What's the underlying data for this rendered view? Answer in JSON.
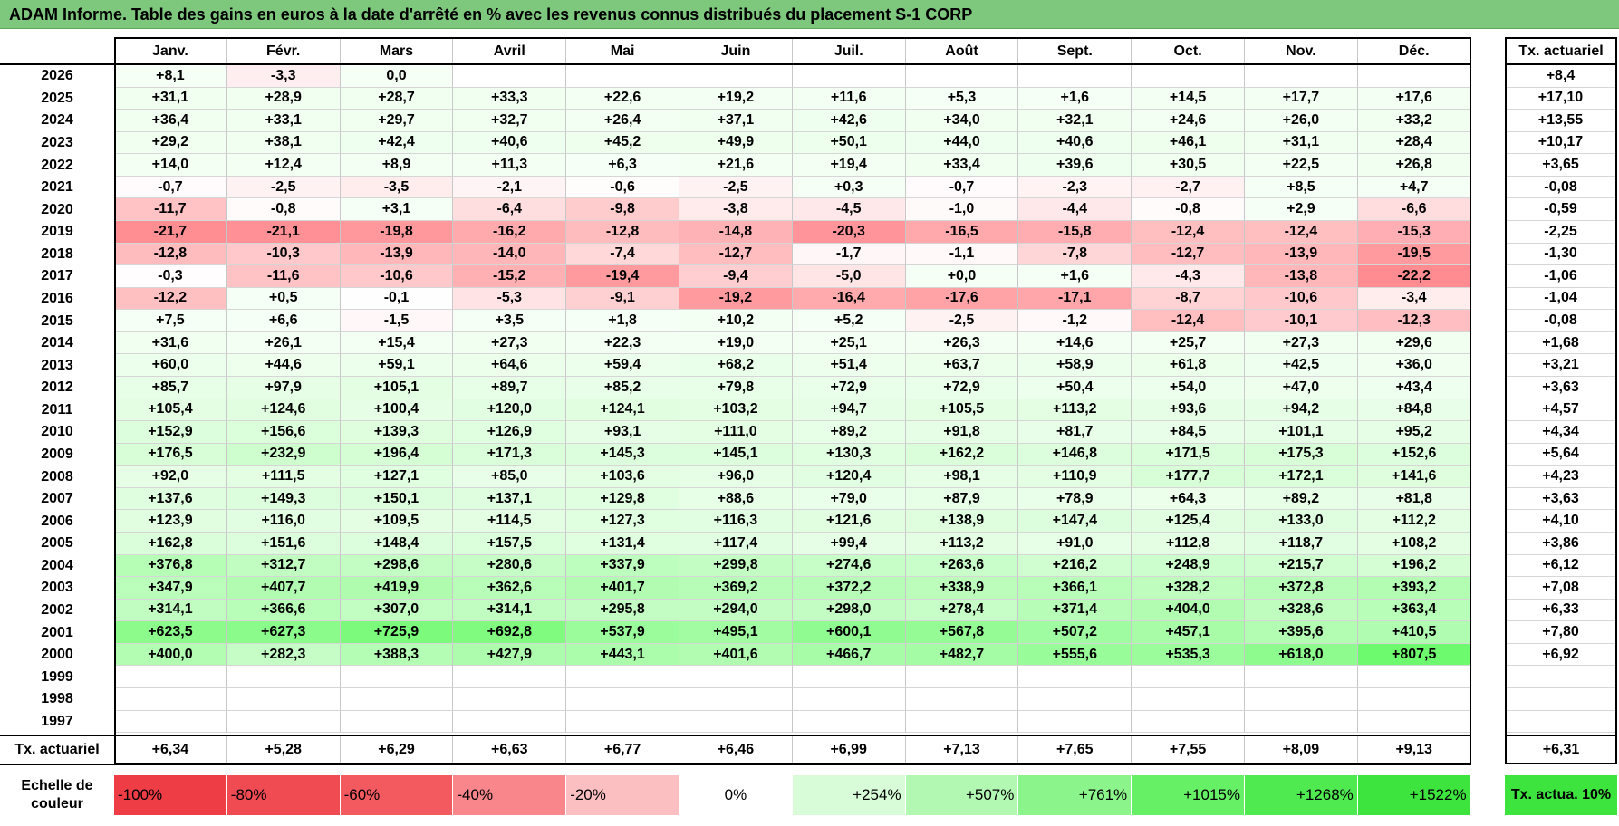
{
  "title": "ADAM Informe. Table des gains en euros à la date d'arrêté en % avec les revenus connus distribués du placement S-1 CORP",
  "months": [
    "Janv.",
    "Févr.",
    "Mars",
    "Avril",
    "Mai",
    "Juin",
    "Juil.",
    "Août",
    "Sept.",
    "Oct.",
    "Nov.",
    "Déc."
  ],
  "rate_header": "Tx. actuariel",
  "rows": [
    {
      "year": "2026",
      "values": [
        "+8,1",
        "-3,3",
        "0,0",
        "",
        "",
        "",
        "",
        "",
        "",
        "",
        "",
        ""
      ],
      "rate": "+8,4"
    },
    {
      "year": "2025",
      "values": [
        "+31,1",
        "+28,9",
        "+28,7",
        "+33,3",
        "+22,6",
        "+19,2",
        "+11,6",
        "+5,3",
        "+1,6",
        "+14,5",
        "+17,7",
        "+17,6"
      ],
      "rate": "+17,10"
    },
    {
      "year": "2024",
      "values": [
        "+36,4",
        "+33,1",
        "+29,7",
        "+32,7",
        "+26,4",
        "+37,1",
        "+42,6",
        "+34,0",
        "+32,1",
        "+24,6",
        "+26,0",
        "+33,2"
      ],
      "rate": "+13,55"
    },
    {
      "year": "2023",
      "values": [
        "+29,2",
        "+38,1",
        "+42,4",
        "+40,6",
        "+45,2",
        "+49,9",
        "+50,1",
        "+44,0",
        "+40,6",
        "+46,1",
        "+31,1",
        "+28,4"
      ],
      "rate": "+10,17"
    },
    {
      "year": "2022",
      "values": [
        "+14,0",
        "+12,4",
        "+8,9",
        "+11,3",
        "+6,3",
        "+21,6",
        "+19,4",
        "+33,4",
        "+39,6",
        "+30,5",
        "+22,5",
        "+26,8"
      ],
      "rate": "+3,65"
    },
    {
      "year": "2021",
      "values": [
        "-0,7",
        "-2,5",
        "-3,5",
        "-2,1",
        "-0,6",
        "-2,5",
        "+0,3",
        "-0,7",
        "-2,3",
        "-2,7",
        "+8,5",
        "+4,7"
      ],
      "rate": "-0,08"
    },
    {
      "year": "2020",
      "values": [
        "-11,7",
        "-0,8",
        "+3,1",
        "-6,4",
        "-9,8",
        "-3,8",
        "-4,5",
        "-1,0",
        "-4,4",
        "-0,8",
        "+2,9",
        "-6,6"
      ],
      "rate": "-0,59"
    },
    {
      "year": "2019",
      "values": [
        "-21,7",
        "-21,1",
        "-19,8",
        "-16,2",
        "-12,8",
        "-14,8",
        "-20,3",
        "-16,5",
        "-15,8",
        "-12,4",
        "-12,4",
        "-15,3"
      ],
      "rate": "-2,25"
    },
    {
      "year": "2018",
      "values": [
        "-12,8",
        "-10,3",
        "-13,9",
        "-14,0",
        "-7,4",
        "-12,7",
        "-1,7",
        "-1,1",
        "-7,8",
        "-12,7",
        "-13,9",
        "-19,5"
      ],
      "rate": "-1,30"
    },
    {
      "year": "2017",
      "values": [
        "-0,3",
        "-11,6",
        "-10,6",
        "-15,2",
        "-19,4",
        "-9,4",
        "-5,0",
        "+0,0",
        "+1,6",
        "-4,3",
        "-13,8",
        "-22,2"
      ],
      "rate": "-1,06"
    },
    {
      "year": "2016",
      "values": [
        "-12,2",
        "+0,5",
        "-0,1",
        "-5,3",
        "-9,1",
        "-19,2",
        "-16,4",
        "-17,6",
        "-17,1",
        "-8,7",
        "-10,6",
        "-3,4"
      ],
      "rate": "-1,04"
    },
    {
      "year": "2015",
      "values": [
        "+7,5",
        "+6,6",
        "-1,5",
        "+3,5",
        "+1,8",
        "+10,2",
        "+5,2",
        "-2,5",
        "-1,2",
        "-12,4",
        "-10,1",
        "-12,3"
      ],
      "rate": "-0,08"
    },
    {
      "year": "2014",
      "values": [
        "+31,6",
        "+26,1",
        "+15,4",
        "+27,3",
        "+22,3",
        "+19,0",
        "+25,1",
        "+26,3",
        "+14,6",
        "+25,7",
        "+27,3",
        "+29,6"
      ],
      "rate": "+1,68"
    },
    {
      "year": "2013",
      "values": [
        "+60,0",
        "+44,6",
        "+59,1",
        "+64,6",
        "+59,4",
        "+68,2",
        "+51,4",
        "+63,7",
        "+58,9",
        "+61,8",
        "+42,5",
        "+36,0"
      ],
      "rate": "+3,21"
    },
    {
      "year": "2012",
      "values": [
        "+85,7",
        "+97,9",
        "+105,1",
        "+89,7",
        "+85,2",
        "+79,8",
        "+72,9",
        "+72,9",
        "+50,4",
        "+54,0",
        "+47,0",
        "+43,4"
      ],
      "rate": "+3,63"
    },
    {
      "year": "2011",
      "values": [
        "+105,4",
        "+124,6",
        "+100,4",
        "+120,0",
        "+124,1",
        "+103,2",
        "+94,7",
        "+105,5",
        "+113,2",
        "+93,6",
        "+94,2",
        "+84,8"
      ],
      "rate": "+4,57"
    },
    {
      "year": "2010",
      "values": [
        "+152,9",
        "+156,6",
        "+139,3",
        "+126,9",
        "+93,1",
        "+111,0",
        "+89,2",
        "+91,8",
        "+81,7",
        "+84,5",
        "+101,1",
        "+95,2"
      ],
      "rate": "+4,34"
    },
    {
      "year": "2009",
      "values": [
        "+176,5",
        "+232,9",
        "+196,4",
        "+171,3",
        "+145,3",
        "+145,1",
        "+130,3",
        "+162,2",
        "+146,8",
        "+171,5",
        "+175,3",
        "+152,6"
      ],
      "rate": "+5,64"
    },
    {
      "year": "2008",
      "values": [
        "+92,0",
        "+111,5",
        "+127,1",
        "+85,0",
        "+103,6",
        "+96,0",
        "+120,4",
        "+98,1",
        "+110,9",
        "+177,7",
        "+172,1",
        "+141,6"
      ],
      "rate": "+4,23"
    },
    {
      "year": "2007",
      "values": [
        "+137,6",
        "+149,3",
        "+150,1",
        "+137,1",
        "+129,8",
        "+88,6",
        "+79,0",
        "+87,9",
        "+78,9",
        "+64,3",
        "+89,2",
        "+81,8"
      ],
      "rate": "+3,63"
    },
    {
      "year": "2006",
      "values": [
        "+123,9",
        "+116,0",
        "+109,5",
        "+114,5",
        "+127,3",
        "+116,3",
        "+121,6",
        "+138,9",
        "+147,4",
        "+125,4",
        "+133,0",
        "+112,2"
      ],
      "rate": "+4,10"
    },
    {
      "year": "2005",
      "values": [
        "+162,8",
        "+151,6",
        "+148,4",
        "+157,5",
        "+131,4",
        "+117,4",
        "+99,4",
        "+113,2",
        "+91,0",
        "+112,8",
        "+118,7",
        "+108,2"
      ],
      "rate": "+3,86"
    },
    {
      "year": "2004",
      "values": [
        "+376,8",
        "+312,7",
        "+298,6",
        "+280,6",
        "+337,9",
        "+299,8",
        "+274,6",
        "+263,6",
        "+216,2",
        "+248,9",
        "+215,7",
        "+196,2"
      ],
      "rate": "+6,12"
    },
    {
      "year": "2003",
      "values": [
        "+347,9",
        "+407,7",
        "+419,9",
        "+362,6",
        "+401,7",
        "+369,2",
        "+372,2",
        "+338,9",
        "+366,1",
        "+328,2",
        "+372,8",
        "+393,2"
      ],
      "rate": "+7,08"
    },
    {
      "year": "2002",
      "values": [
        "+314,1",
        "+366,6",
        "+307,0",
        "+314,1",
        "+295,8",
        "+294,0",
        "+298,0",
        "+278,4",
        "+371,4",
        "+404,0",
        "+328,6",
        "+363,4"
      ],
      "rate": "+6,33"
    },
    {
      "year": "2001",
      "values": [
        "+623,5",
        "+627,3",
        "+725,9",
        "+692,8",
        "+537,9",
        "+495,1",
        "+600,1",
        "+567,8",
        "+507,2",
        "+457,1",
        "+395,6",
        "+410,5"
      ],
      "rate": "+7,80"
    },
    {
      "year": "2000",
      "values": [
        "+400,0",
        "+282,3",
        "+388,3",
        "+427,9",
        "+443,1",
        "+401,6",
        "+466,7",
        "+482,7",
        "+555,6",
        "+535,3",
        "+618,0",
        "+807,5"
      ],
      "rate": "+6,92"
    },
    {
      "year": "1999",
      "values": [
        "",
        "",
        "",
        "",
        "",
        "",
        "",
        "",
        "",
        "",
        "",
        ""
      ],
      "rate": ""
    },
    {
      "year": "1998",
      "values": [
        "",
        "",
        "",
        "",
        "",
        "",
        "",
        "",
        "",
        "",
        "",
        ""
      ],
      "rate": ""
    },
    {
      "year": "1997",
      "values": [
        "",
        "",
        "",
        "",
        "",
        "",
        "",
        "",
        "",
        "",
        "",
        ""
      ],
      "rate": ""
    }
  ],
  "summary": {
    "label": "Tx. actuariel",
    "values": [
      "+6,34",
      "+5,28",
      "+6,29",
      "+6,63",
      "+6,77",
      "+6,46",
      "+6,99",
      "+7,13",
      "+7,65",
      "+7,55",
      "+8,09",
      "+9,13"
    ],
    "total": "+6,31"
  },
  "scale": {
    "label": "Echelle de couleur",
    "items": [
      {
        "text": "-100%",
        "color": "#ee3d45",
        "align": "l"
      },
      {
        "text": "-80%",
        "color": "#f04a52",
        "align": "l"
      },
      {
        "text": "-60%",
        "color": "#f35a60",
        "align": "l"
      },
      {
        "text": "-40%",
        "color": "#f8868b",
        "align": "l"
      },
      {
        "text": "-20%",
        "color": "#fbbfc1",
        "align": "l"
      },
      {
        "text": "0%",
        "color": "#ffffff",
        "align": "c"
      },
      {
        "text": "+254%",
        "color": "#d8fcd8",
        "align": "r"
      },
      {
        "text": "+507%",
        "color": "#b2f8b2",
        "align": "r"
      },
      {
        "text": "+761%",
        "color": "#8bf48b",
        "align": "r"
      },
      {
        "text": "+1015%",
        "color": "#66f066",
        "align": "r"
      },
      {
        "text": "+1268%",
        "color": "#4fea4f",
        "align": "r"
      },
      {
        "text": "+1522%",
        "color": "#3ee43e",
        "align": "r"
      }
    ],
    "rate_label": "Tx. actua. 10%",
    "rate_color": "#3ee43e"
  }
}
